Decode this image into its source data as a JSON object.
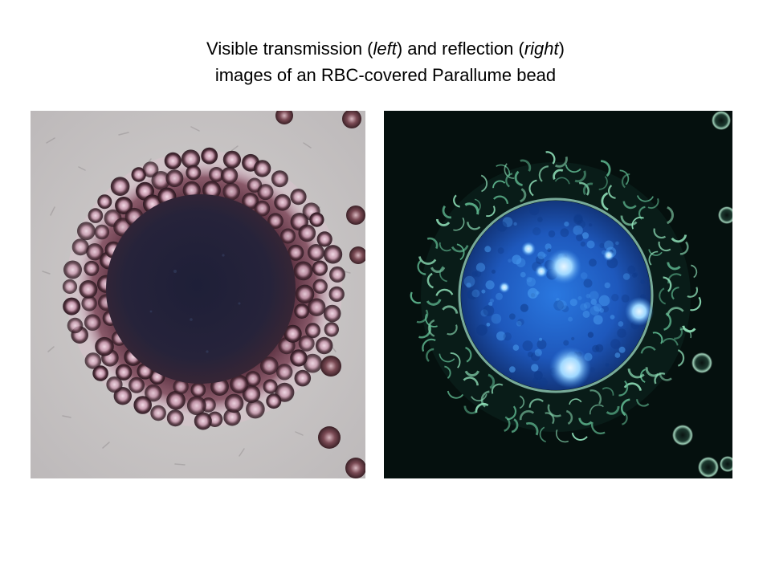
{
  "slide": {
    "title": {
      "line1_before_left": "Visible transmission (",
      "line1_left_word": "left",
      "line1_between": ") and reflection (",
      "line1_right_word": "right",
      "line1_after": ")",
      "line2": "images of an RBC-covered Parallume bead"
    }
  },
  "images": {
    "left": {
      "subject": "transmission-micrograph",
      "colors": {
        "background": "#c9c6c5",
        "bead_core": "#26243a",
        "rbc_ring": "#4a2a34",
        "rbc_highlight": "#e6c0d2"
      }
    },
    "right": {
      "subject": "reflection-micrograph",
      "colors": {
        "background": "#05100e",
        "bead_core": "#1b5bc2",
        "bright_spots": "#bfe8ff",
        "rbc_edges": "#8fe0b8"
      }
    }
  }
}
